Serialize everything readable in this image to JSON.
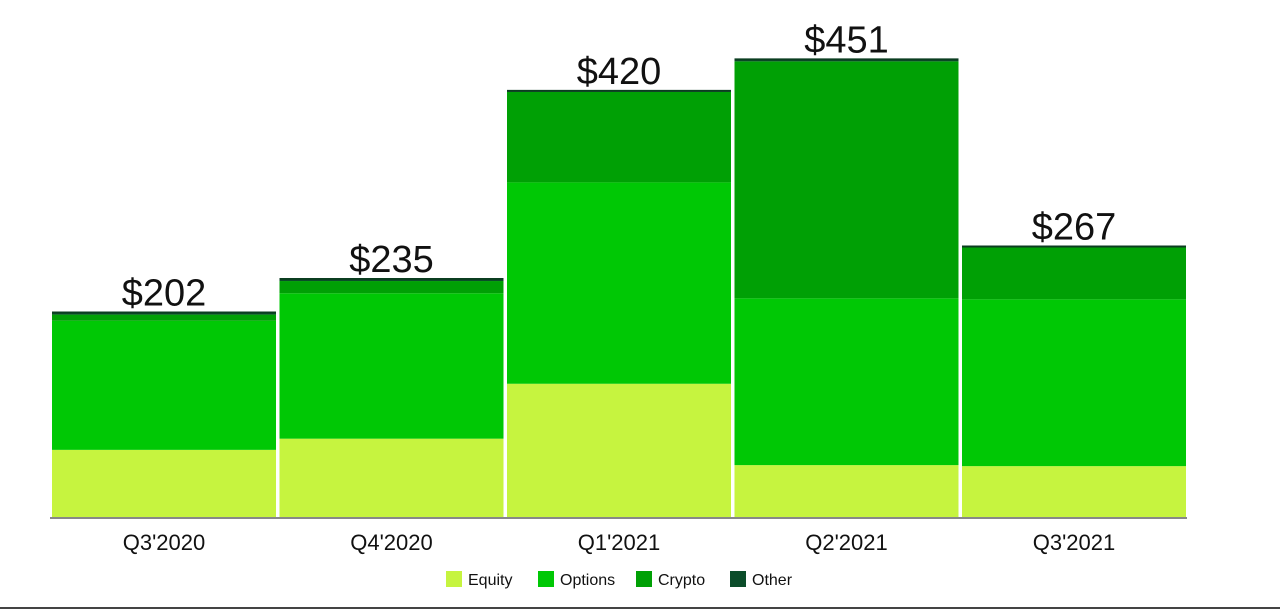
{
  "chart_data": {
    "type": "bar",
    "stacked": true,
    "title": "",
    "xlabel": "",
    "ylabel": "",
    "ylim": [
      0,
      470
    ],
    "categories": [
      "Q3'2020",
      "Q4'2020",
      "Q1'2021",
      "Q2'2021",
      "Q3'2021"
    ],
    "totals": [
      202,
      235,
      420,
      451,
      267
    ],
    "total_labels": [
      "$202",
      "$235",
      "$420",
      "$451",
      "$267"
    ],
    "series": [
      {
        "name": "Equity",
        "color": "#c6f43f",
        "values": [
          67,
          78,
          132,
          52,
          51
        ]
      },
      {
        "name": "Options",
        "color": "#00c805",
        "values": [
          127,
          143,
          198,
          164,
          164
        ]
      },
      {
        "name": "Crypto",
        "color": "#00a005",
        "values": [
          6,
          12,
          89,
          233,
          51
        ]
      },
      {
        "name": "Other",
        "color": "#0b4d2a",
        "values": [
          2,
          2,
          1,
          2,
          1
        ]
      }
    ],
    "legend_position": "bottom-center",
    "grid": false
  }
}
